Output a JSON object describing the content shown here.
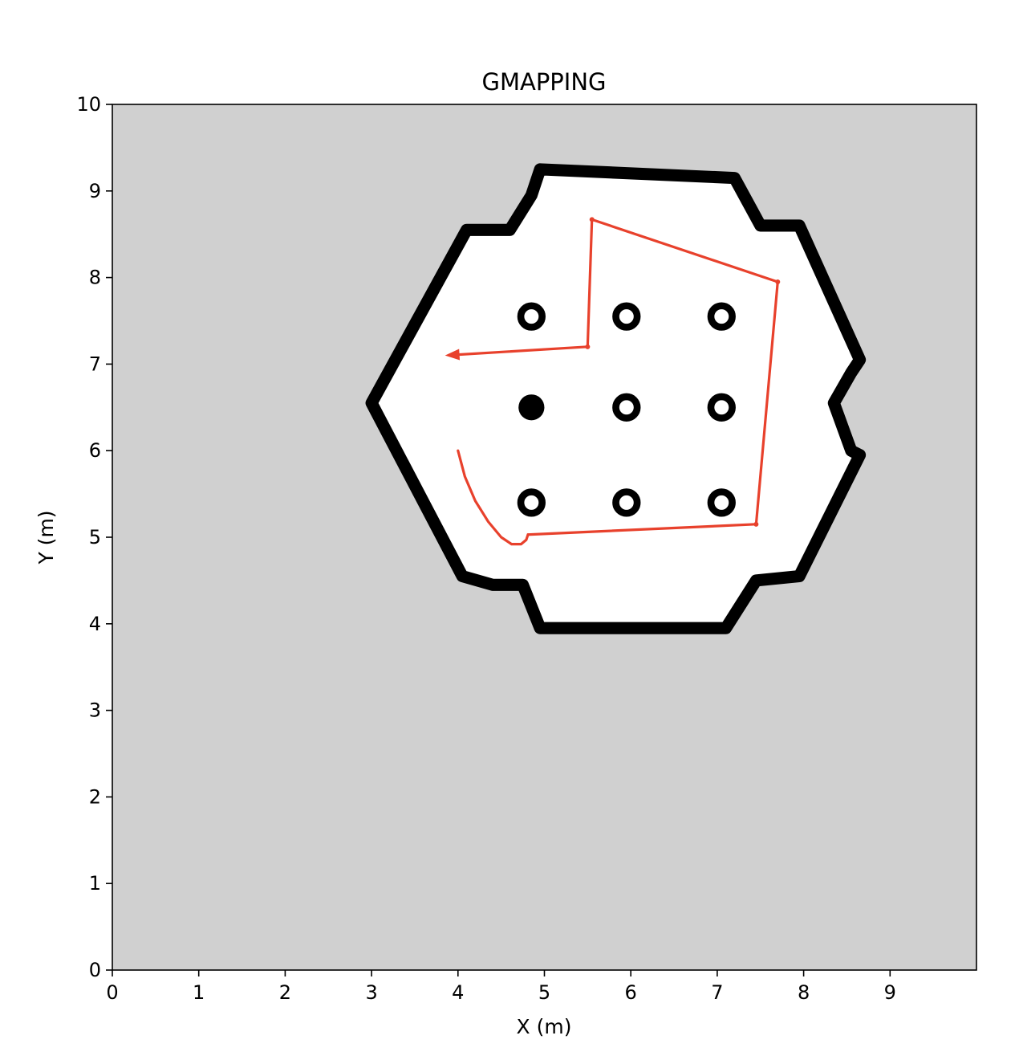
{
  "chart_data": {
    "type": "occupancy_grid_map",
    "title": "GMAPPING",
    "xlabel": "X (m)",
    "ylabel": "Y (m)",
    "xlim": [
      0,
      10
    ],
    "ylim": [
      0,
      10
    ],
    "xticks": [
      "0",
      "1",
      "2",
      "3",
      "4",
      "5",
      "6",
      "7",
      "8",
      "9"
    ],
    "yticks": [
      "0",
      "1",
      "2",
      "3",
      "4",
      "5",
      "6",
      "7",
      "8",
      "9",
      "10"
    ],
    "grid": false,
    "colors": {
      "unknown": "#d0d0d0",
      "free": "#ffffff",
      "occupied": "#000000",
      "trajectory": "#e8412c"
    },
    "map": {
      "outer_wall": [
        [
          3.0,
          6.55
        ],
        [
          4.1,
          8.55
        ],
        [
          4.6,
          8.55
        ],
        [
          4.85,
          8.95
        ],
        [
          4.95,
          9.25
        ],
        [
          7.2,
          9.15
        ],
        [
          7.5,
          8.6
        ],
        [
          7.95,
          8.6
        ],
        [
          8.65,
          7.05
        ],
        [
          8.55,
          6.9
        ],
        [
          8.35,
          6.55
        ],
        [
          8.55,
          6.0
        ],
        [
          8.65,
          5.95
        ],
        [
          7.95,
          4.55
        ],
        [
          7.45,
          4.5
        ],
        [
          7.1,
          3.95
        ],
        [
          4.95,
          3.95
        ],
        [
          4.75,
          4.45
        ],
        [
          4.4,
          4.45
        ],
        [
          4.05,
          4.55
        ]
      ],
      "wall_thickness": 0.14,
      "pillars": [
        {
          "x": 4.85,
          "y": 7.55,
          "kind": "ring"
        },
        {
          "x": 5.95,
          "y": 7.55,
          "kind": "ring"
        },
        {
          "x": 7.05,
          "y": 7.55,
          "kind": "ring"
        },
        {
          "x": 4.85,
          "y": 6.5,
          "kind": "solid"
        },
        {
          "x": 5.95,
          "y": 6.5,
          "kind": "ring"
        },
        {
          "x": 7.05,
          "y": 6.5,
          "kind": "ring"
        },
        {
          "x": 4.85,
          "y": 5.4,
          "kind": "ring"
        },
        {
          "x": 5.95,
          "y": 5.4,
          "kind": "ring"
        },
        {
          "x": 7.05,
          "y": 5.4,
          "kind": "ring"
        }
      ],
      "pillar_radius": 0.13
    },
    "trajectory": {
      "curve": [
        [
          4.0,
          6.0
        ],
        [
          4.08,
          5.7
        ],
        [
          4.2,
          5.42
        ],
        [
          4.35,
          5.18
        ],
        [
          4.5,
          5.0
        ],
        [
          4.62,
          4.92
        ],
        [
          4.73,
          4.92
        ],
        [
          4.79,
          4.97
        ],
        [
          4.81,
          5.03
        ]
      ],
      "waypoints": [
        [
          4.81,
          5.03
        ],
        [
          7.45,
          5.15
        ],
        [
          7.7,
          7.95
        ],
        [
          5.55,
          8.67
        ],
        [
          5.5,
          7.2
        ],
        [
          3.85,
          7.1
        ]
      ],
      "end_arrow": true
    }
  }
}
